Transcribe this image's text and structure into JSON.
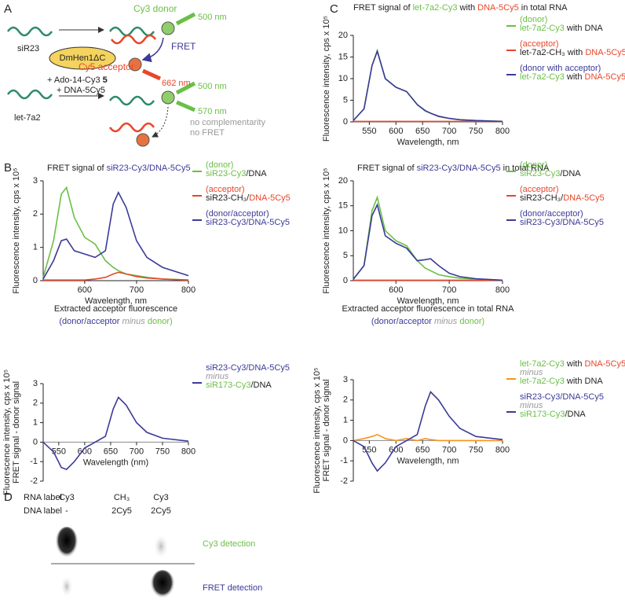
{
  "panels": [
    "A",
    "B",
    "C",
    "D"
  ],
  "schematic": {
    "sir23": "siR23",
    "enzyme": "DmHen1ΔC",
    "cofactor": "+ Ado-14-Cy3",
    "cofactor_num": "5",
    "dna": "+ DNA-5Cy5",
    "let7a2": "let-7a2",
    "donor": "Cy3 donor",
    "ex1": "500 nm",
    "fret": "FRET",
    "acceptor": "Cy5 acceptor",
    "em1": "662 nm",
    "ex2": "500 nm",
    "em2": "570 nm",
    "no_comp": "no complementarity",
    "no_fret": "no FRET"
  },
  "gel": {
    "rna_label": "RNA label",
    "dna_label": "DNA label",
    "rna": [
      "Cy3",
      "CH₃",
      "Cy3"
    ],
    "dna": [
      "-",
      "2Cy5",
      "2Cy5"
    ],
    "cy3_detection": "Cy3 detection",
    "fret_detection": "FRET detection"
  },
  "chart_data": [
    {
      "type": "line",
      "title": [
        [
          {
            "text": "FRET signal of ",
            "color": "#222"
          },
          {
            "text": "let-7a2-Cy3",
            "color": "#6abf45"
          },
          {
            "text": " with ",
            "color": "#222"
          },
          {
            "text": "DNA-5Cy5",
            "color": "#e8462a"
          },
          {
            "text": " in total RNA",
            "color": "#222"
          }
        ]
      ],
      "xlabel": "Wavelength, nm",
      "ylabel": [
        "Fluorescence intensity, cps x 10⁵"
      ],
      "x": [
        520,
        540,
        555,
        565,
        580,
        600,
        620,
        640,
        655,
        665,
        680,
        700,
        720,
        750,
        800
      ],
      "xlim": [
        520,
        800
      ],
      "xticks": [
        550,
        600,
        650,
        700,
        750,
        800
      ],
      "ylim": [
        0,
        20
      ],
      "yticks": [
        0,
        5,
        10,
        15,
        20
      ],
      "series": [
        {
          "color": "#6abf45",
          "legend": [
            [
              {
                "text": "(donor)",
                "color": "#6abf45"
              }
            ],
            [
              {
                "text": "let-7a2-Cy3",
                "color": "#6abf45"
              },
              {
                "text": " with DNA",
                "color": "#222"
              }
            ]
          ],
          "values": [
            0.3,
            3,
            13,
            16.5,
            10,
            8,
            7,
            4,
            2.5,
            2,
            1.2,
            0.8,
            0.5,
            0.3,
            0.1
          ]
        },
        {
          "color": "#e8462a",
          "legend": [
            [
              {
                "text": "(acceptor)",
                "color": "#e8462a"
              }
            ],
            [
              {
                "text": "let-7a2-CH₃",
                "color": "#222"
              },
              {
                "text": " with ",
                "color": "#222"
              },
              {
                "text": "DNA-5Cy5",
                "color": "#e8462a"
              }
            ]
          ],
          "values": [
            0.1,
            0.1,
            0.1,
            0.1,
            0.1,
            0.1,
            0.1,
            0.1,
            0.1,
            0.1,
            0.1,
            0.1,
            0.1,
            0.1,
            0.1
          ]
        },
        {
          "color": "#3b3a98",
          "legend": [
            [
              {
                "text": "(donor with acceptor)",
                "color": "#3b3a98"
              }
            ],
            [
              {
                "text": "let-7a2-Cy3",
                "color": "#6abf45"
              },
              {
                "text": " with ",
                "color": "#222"
              },
              {
                "text": "DNA-5Cy5",
                "color": "#e8462a"
              }
            ]
          ],
          "values": [
            0.3,
            3,
            13,
            16.3,
            10,
            8,
            7,
            4,
            2.6,
            2,
            1.3,
            0.8,
            0.5,
            0.3,
            0.1
          ]
        }
      ]
    },
    {
      "type": "line",
      "title": [
        [
          {
            "text": "FRET signal of ",
            "color": "#222"
          },
          {
            "text": "siR23-Cy3/DNA-5Cy5",
            "color": "#3b3a98"
          }
        ]
      ],
      "xlabel": "Wavelength, nm",
      "ylabel": [
        "Fluorescence intensity, cps x 10⁵"
      ],
      "x": [
        520,
        540,
        555,
        565,
        580,
        600,
        620,
        640,
        655,
        665,
        680,
        700,
        720,
        750,
        800
      ],
      "xlim": [
        520,
        800
      ],
      "xticks": [
        600,
        700,
        800
      ],
      "ylim": [
        0,
        3
      ],
      "yticks": [
        0,
        1,
        2,
        3
      ],
      "series": [
        {
          "color": "#6abf45",
          "legend": [
            [
              {
                "text": "(donor)",
                "color": "#6abf45"
              }
            ],
            [
              {
                "text": "siR23-Cy3",
                "color": "#6abf45"
              },
              {
                "text": "/DNA",
                "color": "#222"
              }
            ]
          ],
          "values": [
            0.1,
            1.2,
            2.6,
            2.8,
            1.9,
            1.3,
            1.1,
            0.6,
            0.4,
            0.3,
            0.2,
            0.15,
            0.1,
            0.05,
            0.02
          ]
        },
        {
          "color": "#e8462a",
          "legend": [
            [
              {
                "text": "(acceptor)",
                "color": "#e8462a"
              }
            ],
            [
              {
                "text": "siR23-CH₃/",
                "color": "#222"
              },
              {
                "text": "DNA-5Cy5",
                "color": "#e8462a"
              }
            ]
          ],
          "values": [
            0.02,
            0.02,
            0.02,
            0.02,
            0.02,
            0.02,
            0.05,
            0.1,
            0.2,
            0.25,
            0.2,
            0.12,
            0.08,
            0.05,
            0.02
          ]
        },
        {
          "color": "#3b3a98",
          "legend": [
            [
              {
                "text": "(donor/acceptor)",
                "color": "#3b3a98"
              }
            ],
            [
              {
                "text": "siR23-Cy3/DNA-5Cy5",
                "color": "#3b3a98"
              }
            ]
          ],
          "values": [
            0.05,
            0.6,
            1.2,
            1.25,
            0.9,
            0.8,
            0.7,
            0.9,
            2.3,
            2.65,
            2.2,
            1.2,
            0.7,
            0.4,
            0.15
          ]
        }
      ]
    },
    {
      "type": "line",
      "title": [
        [
          {
            "text": "FRET signal of ",
            "color": "#222"
          },
          {
            "text": "siR23-Cy3/DNA-5Cy5",
            "color": "#3b3a98"
          },
          {
            "text": " in total RNA",
            "color": "#222"
          }
        ]
      ],
      "xlabel": "Wavelength, nm",
      "ylabel": [
        "Fluorescence intensity, cps x 10⁵"
      ],
      "x": [
        520,
        540,
        555,
        565,
        580,
        600,
        620,
        640,
        655,
        665,
        680,
        700,
        720,
        750,
        800
      ],
      "xlim": [
        520,
        800
      ],
      "xticks": [
        600,
        700,
        800
      ],
      "ylim": [
        0,
        20
      ],
      "yticks": [
        0,
        5,
        10,
        15,
        20
      ],
      "series": [
        {
          "color": "#6abf45",
          "legend": [
            [
              {
                "text": "(donor)",
                "color": "#6abf45"
              }
            ],
            [
              {
                "text": "siR23-Cy3",
                "color": "#6abf45"
              },
              {
                "text": "/DNA",
                "color": "#222"
              }
            ]
          ],
          "values": [
            0.3,
            3,
            14,
            16.7,
            10,
            8,
            7,
            4,
            2.5,
            2,
            1.2,
            0.8,
            0.5,
            0.3,
            0.1
          ]
        },
        {
          "color": "#e8462a",
          "legend": [
            [
              {
                "text": "(acceptor)",
                "color": "#e8462a"
              }
            ],
            [
              {
                "text": "siR23-CH₃/",
                "color": "#222"
              },
              {
                "text": "DNA-5Cy5",
                "color": "#e8462a"
              }
            ]
          ],
          "values": [
            0.1,
            0.1,
            0.1,
            0.1,
            0.1,
            0.1,
            0.1,
            0.1,
            0.1,
            0.1,
            0.1,
            0.1,
            0.1,
            0.1,
            0.1
          ]
        },
        {
          "color": "#3b3a98",
          "legend": [
            [
              {
                "text": "(donor/acceptor)",
                "color": "#3b3a98"
              }
            ],
            [
              {
                "text": "siR23-Cy3/DNA-5Cy5",
                "color": "#3b3a98"
              }
            ]
          ],
          "values": [
            0.3,
            3,
            13,
            15.2,
            9,
            7.5,
            6.5,
            4,
            4.2,
            4.4,
            3,
            1.5,
            0.8,
            0.4,
            0.1
          ]
        }
      ]
    },
    {
      "type": "line",
      "title": [
        [
          {
            "text": "Extracted acceptor fluorescence",
            "color": "#222"
          }
        ],
        [
          {
            "text": "(donor/acceptor ",
            "color": "#3b3a98"
          },
          {
            "text": "minus",
            "color": "#999",
            "style": "italic"
          },
          {
            "text": " donor)",
            "color": "#6abf45"
          }
        ]
      ],
      "xlabel": "Wavelength (nm)",
      "ylabel": [
        "Fluorescence intensity, cps x 10⁵",
        "FRET signal - donor signal"
      ],
      "xaxis_at_zero": true,
      "x": [
        520,
        540,
        555,
        565,
        580,
        600,
        620,
        640,
        655,
        665,
        680,
        700,
        720,
        750,
        800
      ],
      "xlim": [
        520,
        800
      ],
      "xticks": [
        550,
        600,
        650,
        700,
        750,
        800
      ],
      "ylim": [
        -2,
        3
      ],
      "yticks": [
        -2,
        -1,
        0,
        1,
        2,
        3
      ],
      "series": [
        {
          "color": "#3b3a98",
          "legend": [
            [
              {
                "text": "siR23-Cy3/DNA-5Cy5",
                "color": "#3b3a98"
              }
            ],
            [
              {
                "text": "minus",
                "color": "#999",
                "style": "italic"
              }
            ],
            [
              {
                "text": "siR173-Cy3",
                "color": "#6abf45"
              },
              {
                "text": "/DNA",
                "color": "#222"
              }
            ]
          ],
          "values": [
            0,
            -0.5,
            -1.3,
            -1.4,
            -1,
            -0.3,
            0,
            0.3,
            1.7,
            2.3,
            1.9,
            1,
            0.5,
            0.2,
            0.05
          ]
        }
      ]
    },
    {
      "type": "line",
      "title": [
        [
          {
            "text": "Extracted acceptor fluorescence in total RNA",
            "color": "#222"
          }
        ],
        [
          {
            "text": "(donor/acceptor ",
            "color": "#3b3a98"
          },
          {
            "text": "minus",
            "color": "#999",
            "style": "italic"
          },
          {
            "text": " donor)",
            "color": "#6abf45"
          }
        ]
      ],
      "xlabel": "Wavelength, nm",
      "ylabel": [
        "Fluorescence intensity, cps x 10⁵",
        "FRET signal - donor signal"
      ],
      "xaxis_at_zero": true,
      "x": [
        520,
        540,
        555,
        565,
        580,
        600,
        620,
        640,
        655,
        665,
        680,
        700,
        720,
        750,
        800
      ],
      "xlim": [
        520,
        800
      ],
      "xticks": [
        550,
        600,
        650,
        700,
        750,
        800
      ],
      "ylim": [
        -2,
        3
      ],
      "yticks": [
        -2,
        -1,
        0,
        1,
        2,
        3
      ],
      "series": [
        {
          "color": "#f7941d",
          "legend": [
            [
              {
                "text": "let-7a2-Cy3",
                "color": "#6abf45"
              },
              {
                "text": " with ",
                "color": "#222"
              },
              {
                "text": "DNA-5Cy5",
                "color": "#e8462a"
              }
            ],
            [
              {
                "text": "minus",
                "color": "#999",
                "style": "italic"
              }
            ],
            [
              {
                "text": "let-7a2-Cy3",
                "color": "#6abf45"
              },
              {
                "text": " with DNA",
                "color": "#222"
              }
            ]
          ],
          "values": [
            0,
            0.1,
            0.2,
            0.3,
            0.1,
            0,
            0.1,
            0,
            0.1,
            0.05,
            0,
            0,
            0,
            0,
            0
          ]
        },
        {
          "color": "#3b3a98",
          "legend": [
            [
              {
                "text": "siR23-Cy3/DNA-5Cy5",
                "color": "#3b3a98"
              }
            ],
            [
              {
                "text": "minus",
                "color": "#999",
                "style": "italic"
              }
            ],
            [
              {
                "text": "siR173-Cy3",
                "color": "#6abf45"
              },
              {
                "text": "/DNA",
                "color": "#222"
              }
            ]
          ],
          "values": [
            0,
            -0.3,
            -1.1,
            -1.5,
            -1.1,
            -0.3,
            0,
            0.3,
            1.7,
            2.4,
            2,
            1.2,
            0.6,
            0.2,
            0.05
          ]
        }
      ]
    }
  ]
}
